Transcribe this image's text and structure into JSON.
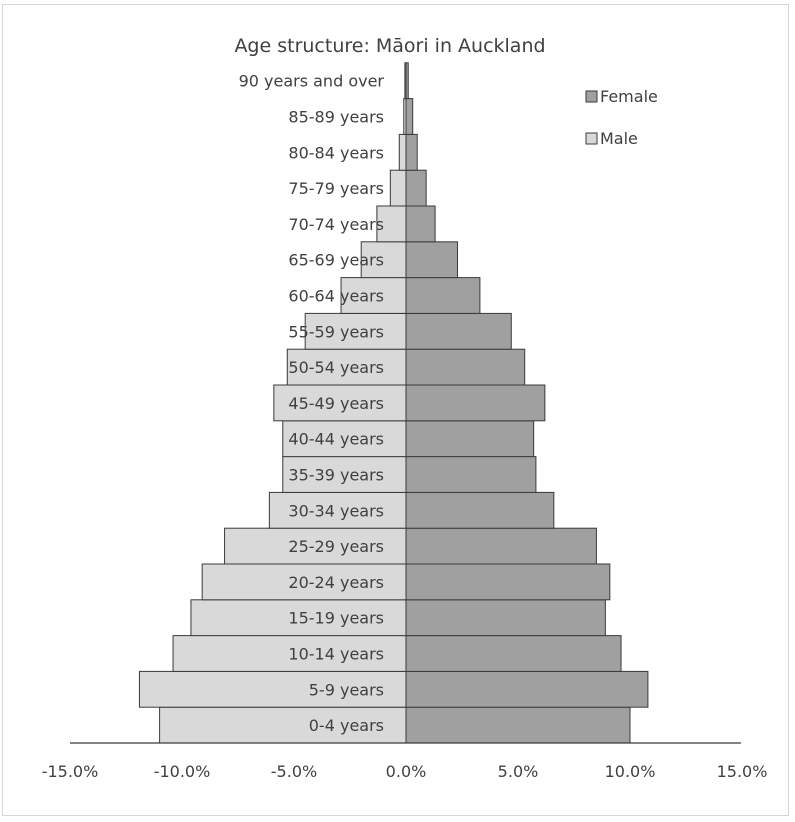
{
  "chart_data": {
    "type": "bar",
    "orientation": "horizontal",
    "title": "Age structure: Māori in Auckland",
    "categories": [
      "0-4 years",
      "5-9 years",
      "10-14 years",
      "15-19 years",
      "20-24 years",
      "25-29 years",
      "30-34 years",
      "35-39 years",
      "40-44 years",
      "45-49 years",
      "50-54 years",
      "55-59 years",
      "60-64 years",
      "65-69 years",
      "70-74 years",
      "75-79 years",
      "80-84 years",
      "85-89 years",
      "90 years and over"
    ],
    "series": [
      {
        "name": "Female",
        "color": "#a0a0a0",
        "values": [
          10.0,
          10.8,
          9.6,
          8.9,
          9.1,
          8.5,
          6.6,
          5.8,
          5.7,
          6.2,
          5.3,
          4.7,
          3.3,
          2.3,
          1.3,
          0.9,
          0.5,
          0.3,
          0.1
        ]
      },
      {
        "name": "Male",
        "color": "#d9d9d9",
        "values": [
          -11.0,
          -11.9,
          -10.4,
          -9.6,
          -9.1,
          -8.1,
          -6.1,
          -5.5,
          -5.5,
          -5.9,
          -5.3,
          -4.5,
          -2.9,
          -2.0,
          -1.3,
          -0.7,
          -0.3,
          -0.1,
          -0.05
        ]
      }
    ],
    "xlim": [
      -15,
      15
    ],
    "xticks": [
      "-15.0%",
      "-10.0%",
      "-5.0%",
      "0.0%",
      "5.0%",
      "10.0%",
      "15.0%"
    ],
    "xlabel": "",
    "ylabel": "",
    "grid": false,
    "legend": {
      "position": "top-right",
      "entries": [
        "Female",
        "Male"
      ]
    }
  }
}
